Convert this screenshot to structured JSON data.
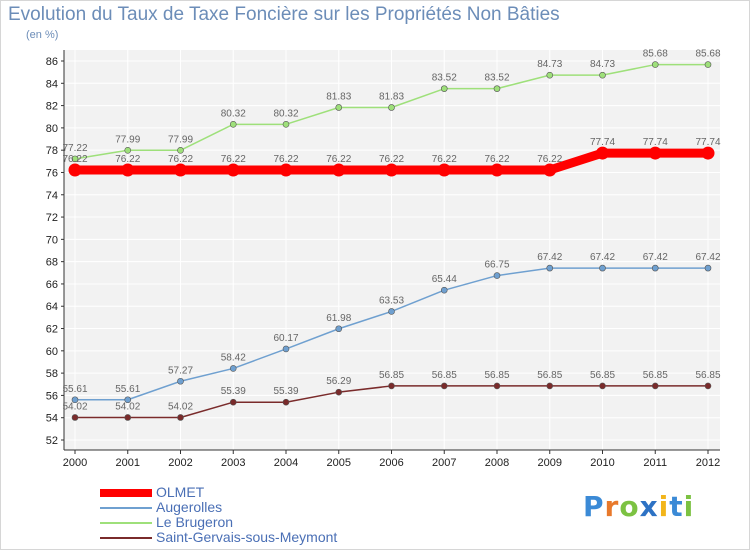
{
  "chart_data": {
    "type": "line",
    "title": "Evolution du Taux de Taxe Foncière sur les Propriétés Non Bâties",
    "subtitle": "(en %)",
    "xlabel": "",
    "ylabel": "(en %)",
    "x": [
      "2000",
      "2001",
      "2002",
      "2003",
      "2004",
      "2005",
      "2006",
      "2007",
      "2008",
      "2009",
      "2010",
      "2011",
      "2012"
    ],
    "ylim": [
      52,
      86
    ],
    "yticks": [
      52,
      54,
      56,
      58,
      60,
      62,
      64,
      66,
      68,
      70,
      72,
      74,
      76,
      78,
      80,
      82,
      84,
      86
    ],
    "series": [
      {
        "name": "OLMET",
        "color": "#ff0000",
        "values": [
          76.22,
          76.22,
          76.22,
          76.22,
          76.22,
          76.22,
          76.22,
          76.22,
          76.22,
          76.22,
          77.74,
          77.74,
          77.74
        ]
      },
      {
        "name": "Augerolles",
        "color": "#6fa0d0",
        "values": [
          55.61,
          55.61,
          57.27,
          58.42,
          60.17,
          61.98,
          63.53,
          65.44,
          66.75,
          67.42,
          67.42,
          67.42,
          67.42
        ]
      },
      {
        "name": "Le Brugeron",
        "color": "#9ee07a",
        "values": [
          77.22,
          77.99,
          77.99,
          80.32,
          80.32,
          81.83,
          81.83,
          83.52,
          83.52,
          84.73,
          84.73,
          85.68,
          85.68
        ]
      },
      {
        "name": "Saint-Gervais-sous-Meymont",
        "color": "#7a2b2b",
        "values": [
          54.02,
          54.02,
          54.02,
          55.39,
          55.39,
          56.29,
          56.85,
          56.85,
          56.85,
          56.85,
          56.85,
          56.85,
          56.85
        ]
      }
    ],
    "legend_position": "bottom-left"
  },
  "logo_text": "Proxiti"
}
